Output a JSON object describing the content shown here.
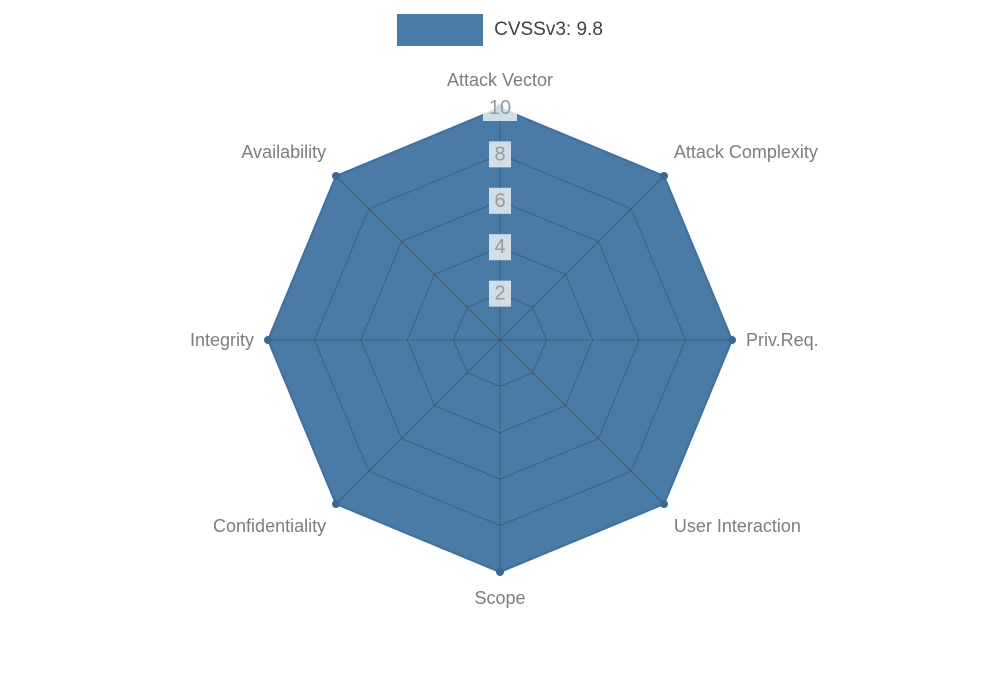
{
  "chart_data": {
    "type": "radar",
    "title": "",
    "legend_label": "CVSSv3: 9.8",
    "legend_position": "top",
    "categories": [
      "Attack Vector",
      "Attack Complexity",
      "Priv.Req.",
      "User Interaction",
      "Scope",
      "Confidentiality",
      "Integrity",
      "Availability"
    ],
    "series": [
      {
        "name": "CVSSv3: 9.8",
        "values": [
          10,
          10,
          10,
          10,
          10,
          10,
          10,
          10
        ]
      }
    ],
    "ticks": [
      2,
      4,
      6,
      8,
      10
    ],
    "rmin": 0,
    "rmax": 10,
    "grid": "on",
    "colors": {
      "fill": "#4a7ba6",
      "stroke": "#3e6f9f",
      "point": "#3a6791",
      "grid": "rgba(60,60,60,0.45)",
      "tick_text": "#9a9a9a",
      "tick_backdrop": "rgba(255,255,255,0.75)",
      "label_text": "#7d7d7d",
      "legend_text": "#3f3f3f"
    }
  }
}
